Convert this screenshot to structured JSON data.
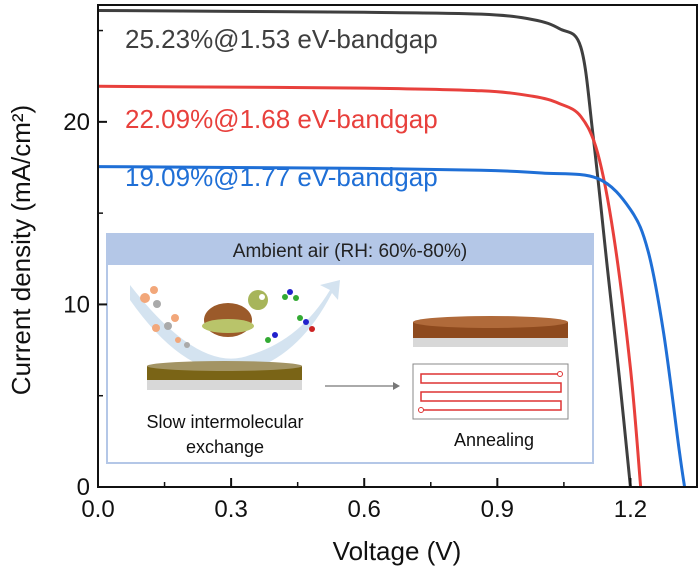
{
  "chart_data": {
    "type": "line",
    "title": "",
    "xlabel": "Voltage (V)",
    "ylabel": "Current density (mA/cm²)",
    "xlim": [
      0,
      1.35
    ],
    "ylim": [
      0,
      26.4
    ],
    "xticks": [
      "0.0",
      "0.3",
      "0.6",
      "0.9",
      "1.2"
    ],
    "xtick_values": [
      0,
      0.3,
      0.6,
      0.9,
      1.2
    ],
    "yticks": [
      "0",
      "10",
      "20"
    ],
    "ytick_values": [
      0,
      10,
      20
    ],
    "grid": false,
    "series": [
      {
        "name": "25.23%@1.53 eV-bandgap",
        "color": "#3f3f3f",
        "x": [
          0,
          0.3,
          0.6,
          0.864,
          0.98,
          1.04,
          1.088,
          1.116,
          1.148,
          1.175,
          1.2
        ],
        "y": [
          26.1,
          26.05,
          26.0,
          25.9,
          25.6,
          25.1,
          24.1,
          19.2,
          12.0,
          6.0,
          0
        ]
      },
      {
        "name": "22.09%@1.68 eV-bandgap",
        "color": "#e8403c",
        "x": [
          0,
          0.3,
          0.6,
          0.864,
          0.98,
          1.04,
          1.088,
          1.126,
          1.162,
          1.2,
          1.223
        ],
        "y": [
          21.95,
          21.9,
          21.85,
          21.7,
          21.4,
          21.0,
          20.3,
          18.3,
          13.8,
          6.5,
          0
        ]
      },
      {
        "name": "19.09%@1.77 eV-bandgap",
        "color": "#1f6fd6",
        "x": [
          0,
          0.3,
          0.6,
          0.864,
          1.0,
          1.126,
          1.2,
          1.24,
          1.275,
          1.31,
          1.322
        ],
        "y": [
          17.55,
          17.5,
          17.45,
          17.35,
          17.2,
          16.9,
          15.2,
          12.9,
          8.4,
          2.0,
          0
        ]
      }
    ]
  },
  "inset": {
    "header": "Ambient air (RH: 60%-80%)",
    "left_caption_line1": "Slow intermolecular",
    "left_caption_line2": "exchange",
    "right_caption": "Annealing",
    "header_color": "#b4c7e7"
  }
}
